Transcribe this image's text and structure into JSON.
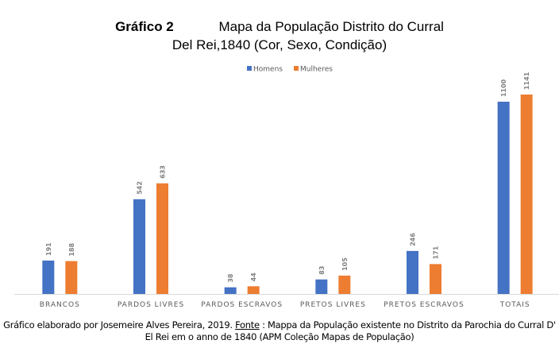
{
  "chart_data": {
    "type": "bar",
    "title_prefix": "Gráfico 2",
    "title_line1": "Mapa da População Distrito do Curral",
    "title_line2": "Del Rei,1840 (Cor, Sexo, Condição)",
    "categories": [
      "BRANCOS",
      "PARDOS LIVRES",
      "PARDOS ESCRAVOS",
      "PRETOS LIVRES",
      "PRETOS ESCRAVOS",
      "TOTAIS"
    ],
    "series": [
      {
        "name": "Homens",
        "color": "#4472C4",
        "values": [
          191,
          542,
          38,
          83,
          246,
          1100
        ]
      },
      {
        "name": "Mulheres",
        "color": "#ED7D31",
        "values": [
          188,
          633,
          44,
          105,
          171,
          1141
        ]
      }
    ],
    "legend_position": "top-center",
    "ylim": [
      0,
      1160
    ],
    "grid": false
  },
  "caption": {
    "part1": "Gráfico elaborado por Josemeire Alves Pereira, 2019. ",
    "fonte": "Fonte",
    "part2": " : Mappa da População existente no Distrito da Parochia do Curral D' El Rei em o anno de 1840  (APM Coleção Mapas de População)"
  }
}
